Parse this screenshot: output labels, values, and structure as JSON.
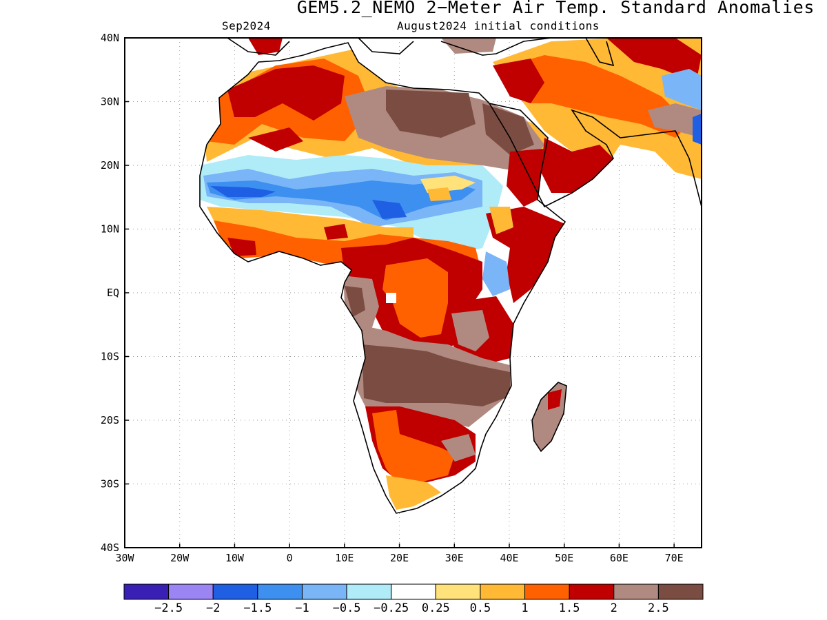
{
  "header": {
    "title": "GEM5.2_NEMO 2−Meter Air Temp. Standard Anomalies",
    "subtitle_left": "Sep2024",
    "subtitle_right": "August2024 initial conditions"
  },
  "map": {
    "region": "Africa",
    "projection": "lat-lon",
    "lon_range": [
      -30,
      75
    ],
    "lat_range": [
      -40,
      40
    ],
    "lon_ticks": [
      "30W",
      "20W",
      "10W",
      "0",
      "10E",
      "20E",
      "30E",
      "40E",
      "50E",
      "60E",
      "70E"
    ],
    "lat_ticks": [
      "40N",
      "30N",
      "20N",
      "10N",
      "EQ",
      "10S",
      "20S",
      "30S",
      "40S"
    ],
    "grid": "dotted"
  },
  "colorbar": {
    "colors": [
      "#3a1fb5",
      "#9b84f4",
      "#1f5fe3",
      "#3d8ff0",
      "#79b5f7",
      "#b0ecf8",
      "#ffffff",
      "#ffe27a",
      "#ffb935",
      "#ff6100",
      "#c00000",
      "#b08a80",
      "#7b4d42"
    ],
    "labels": [
      "−2.5",
      "−2",
      "−1.5",
      "−1",
      "−0.5",
      "−0.25",
      "0.25",
      "0.5",
      "1",
      "1.5",
      "2",
      "2.5"
    ]
  }
}
